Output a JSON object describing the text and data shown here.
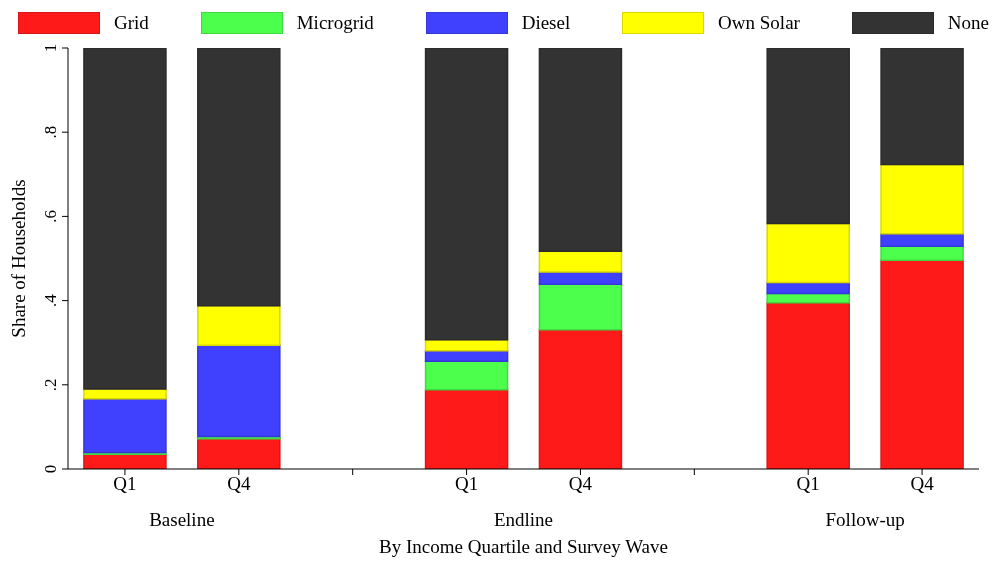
{
  "chart_data": {
    "type": "bar",
    "stacked": true,
    "xlabel": "By Income Quartile and Survey Wave",
    "ylabel": "Share of Households",
    "categories": [
      "Q1",
      "Q4",
      null,
      "Q1",
      "Q4",
      null,
      "Q1",
      "Q4"
    ],
    "annotations": [
      "Baseline",
      "Endline",
      "Follow-up"
    ],
    "ylim": [
      0,
      1
    ],
    "yticks": [
      {
        "value": 0,
        "label": "0"
      },
      {
        "value": 0.2,
        "label": ".2"
      },
      {
        "value": 0.4,
        "label": ".4"
      },
      {
        "value": 0.6,
        "label": ".6"
      },
      {
        "value": 0.8,
        "label": ".8"
      },
      {
        "value": 1,
        "label": "1"
      }
    ],
    "legend": "top",
    "series": [
      {
        "name": "Grid",
        "color": "#ff1a1a",
        "values": [
          0.035,
          0.072,
          null,
          0.188,
          0.331,
          null,
          0.395,
          0.496
        ]
      },
      {
        "name": "Microgrid",
        "color": "#4dff4d",
        "values": [
          0.004,
          0.005,
          null,
          0.068,
          0.108,
          null,
          0.022,
          0.033
        ]
      },
      {
        "name": "Diesel",
        "color": "#4040ff",
        "values": [
          0.128,
          0.217,
          null,
          0.025,
          0.029,
          null,
          0.026,
          0.03
        ]
      },
      {
        "name": "Own Solar",
        "color": "#ffff00",
        "values": [
          0.023,
          0.094,
          null,
          0.026,
          0.049,
          null,
          0.14,
          0.164
        ]
      },
      {
        "name": "None",
        "color": "#333333",
        "values": [
          0.81,
          0.612,
          null,
          0.693,
          0.483,
          null,
          0.417,
          0.277
        ]
      }
    ]
  }
}
